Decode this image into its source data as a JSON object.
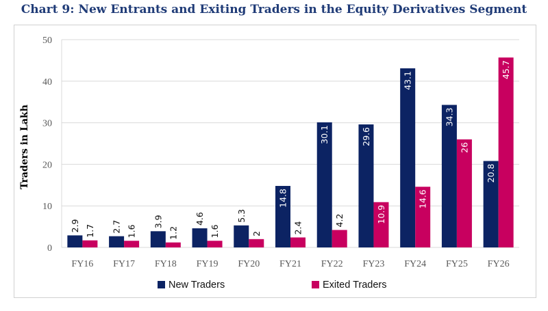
{
  "title": "Chart 9: New Entrants and Exiting Traders in the Equity Derivatives Segment",
  "colors": {
    "new": "#0c2363",
    "exited": "#c8005f",
    "grid": "#d9d9d9"
  },
  "chart_data": {
    "type": "bar",
    "title": "Chart 9: New Entrants and Exiting Traders in the Equity Derivatives Segment",
    "xlabel": "",
    "ylabel": "Traders in Lakh",
    "ylim": [
      0,
      50
    ],
    "yticks": [
      0,
      10,
      20,
      30,
      40,
      50
    ],
    "grid": true,
    "legend": "bottom",
    "categories": [
      "FY16",
      "FY17",
      "FY18",
      "FY19",
      "FY20",
      "FY21",
      "FY22",
      "FY23",
      "FY24",
      "FY25",
      "FY26"
    ],
    "series": [
      {
        "name": "New Traders",
        "values": [
          2.9,
          2.7,
          3.9,
          4.6,
          5.3,
          14.8,
          30.1,
          29.6,
          43.1,
          34.3,
          20.8
        ]
      },
      {
        "name": "Exited Traders",
        "values": [
          1.7,
          1.6,
          1.2,
          1.6,
          2,
          2.4,
          4.2,
          10.9,
          14.6,
          26,
          45.7
        ]
      }
    ]
  }
}
